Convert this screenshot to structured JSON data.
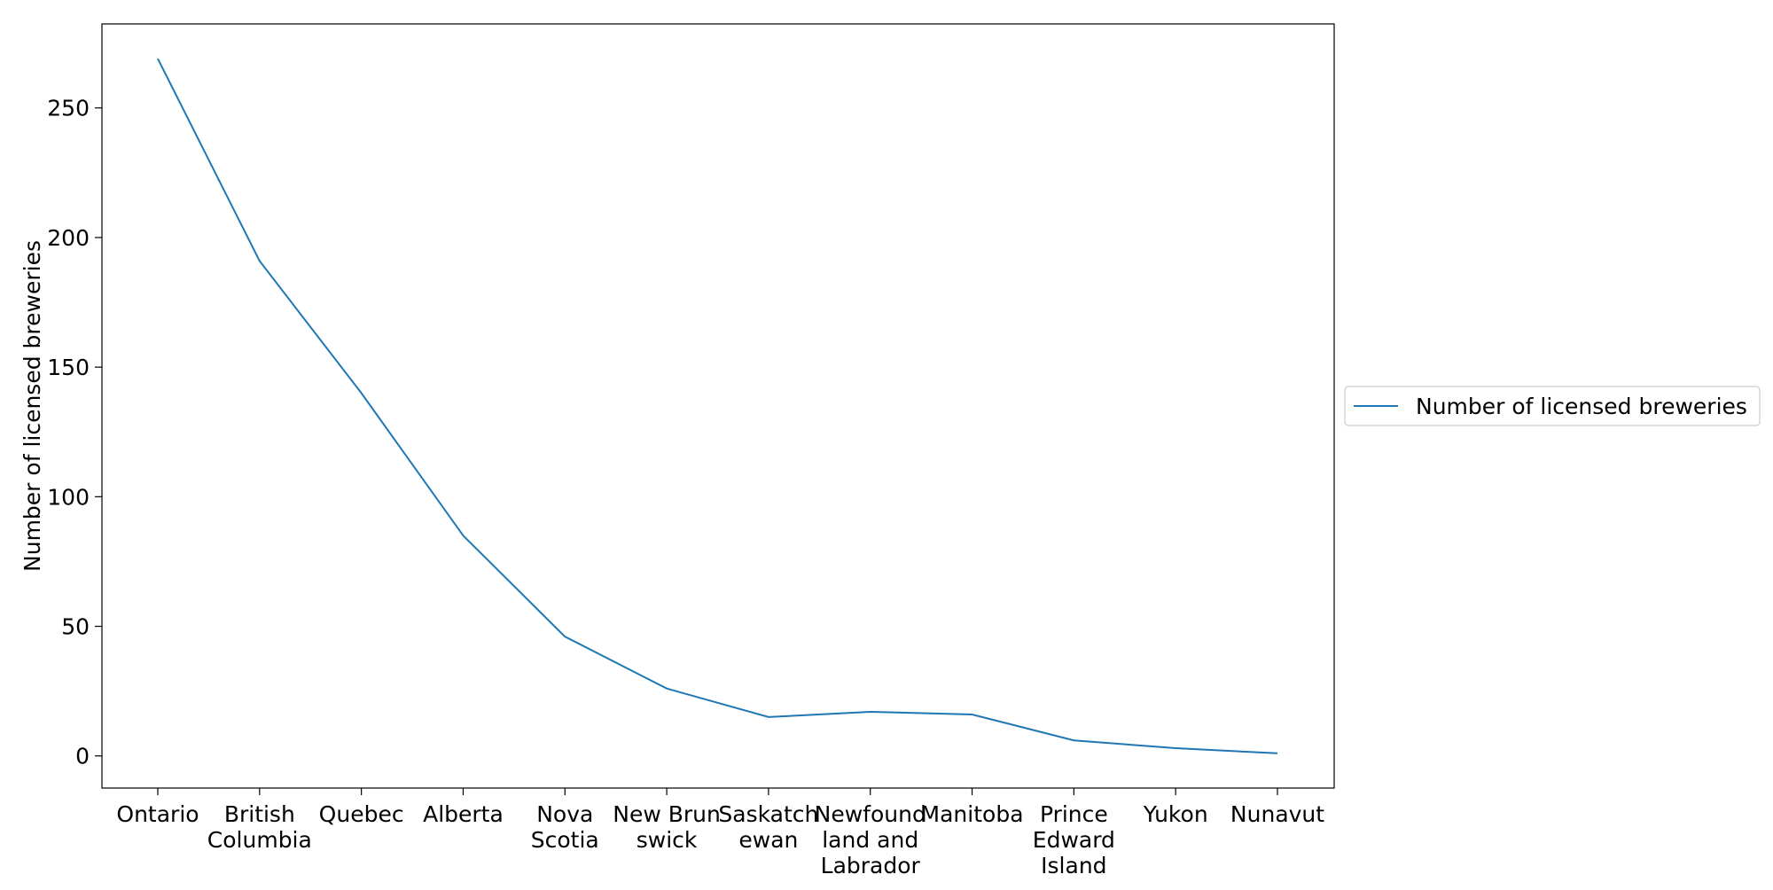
{
  "chart_data": {
    "type": "line",
    "categories": [
      [
        "Ontario"
      ],
      [
        "British",
        "Columbia"
      ],
      [
        "Quebec"
      ],
      [
        "Alberta"
      ],
      [
        "Nova",
        "Scotia"
      ],
      [
        "New Brun",
        "swick"
      ],
      [
        "Saskatch",
        "ewan"
      ],
      [
        "Newfound",
        "land and",
        "Labrador"
      ],
      [
        "Manitoba"
      ],
      [
        "Prince",
        "Edward",
        "Island"
      ],
      [
        "Yukon"
      ],
      [
        "Nunavut"
      ]
    ],
    "series": [
      {
        "name": "Number of licensed breweries",
        "color": "#1f77b4",
        "values": [
          269,
          191,
          140,
          85,
          46,
          26,
          15,
          17,
          16,
          6,
          3,
          1
        ]
      }
    ],
    "title": "",
    "xlabel": "",
    "ylabel": "Number of licensed breweries",
    "ylim": [
      -12.4,
      282.4
    ],
    "yticks": [
      0,
      50,
      100,
      150,
      200,
      250
    ],
    "grid": false,
    "legend_position": "right-center"
  }
}
